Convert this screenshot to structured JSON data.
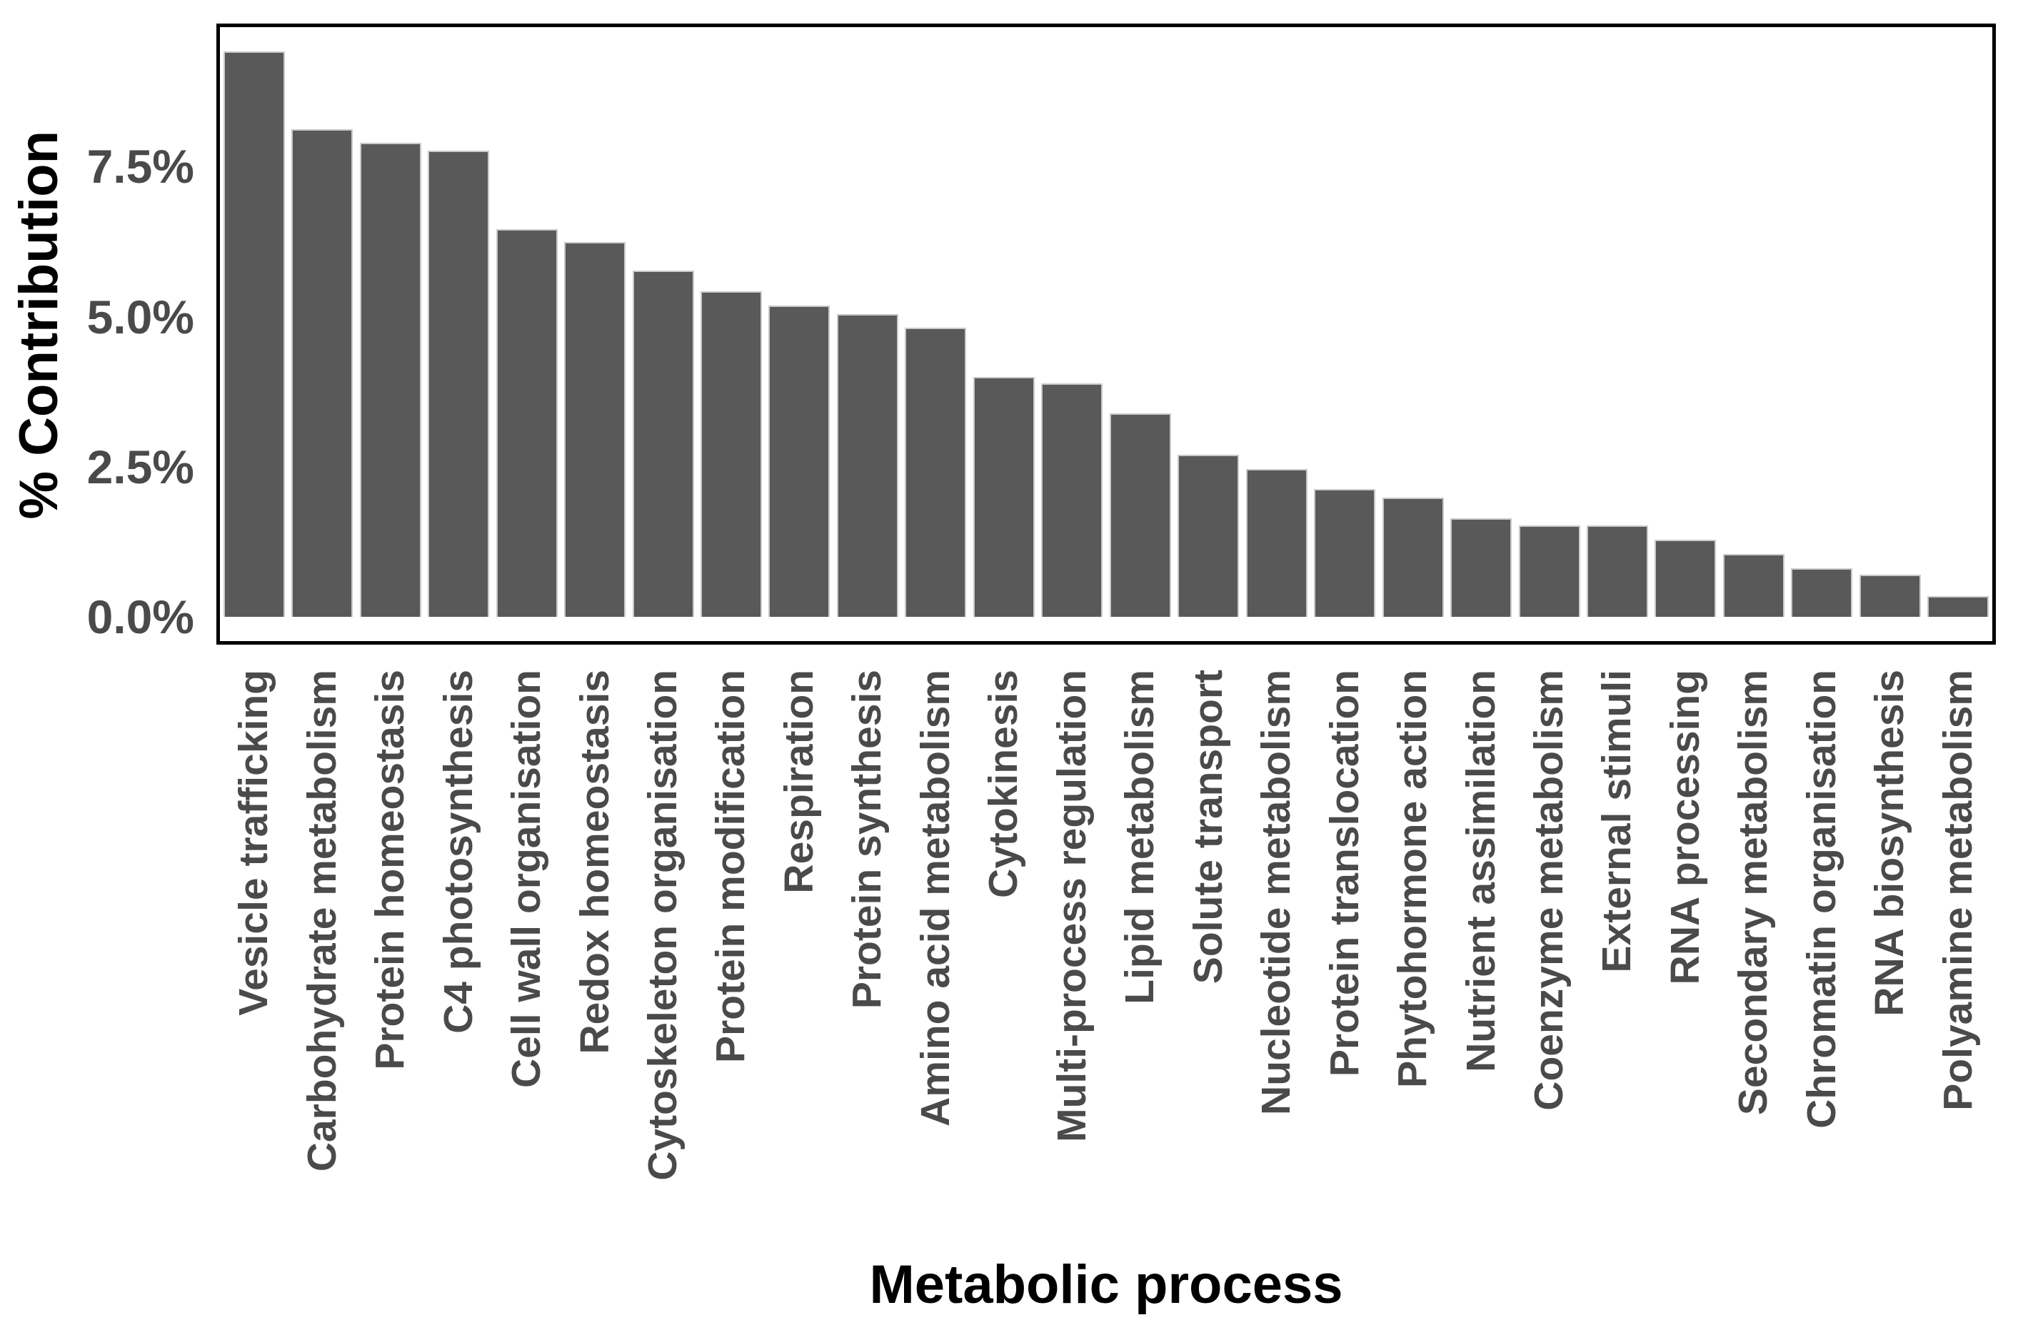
{
  "chart_data": {
    "type": "bar",
    "title": "",
    "xlabel": "Metabolic process",
    "ylabel": "% Contribution",
    "categories": [
      "Vesicle trafficking",
      "Carbohydrate metabolism",
      "Protein homeostasis",
      "C4 photosynthesis",
      "Cell wall organisation",
      "Redox homeostasis",
      "Cytoskeleton organisation",
      "Protein modification",
      "Respiration",
      "Protein synthesis",
      "Amino acid metabolism",
      "Cytokinesis",
      "Multi-process regulation",
      "Lipid metabolism",
      "Solute transport",
      "Nucleotide metabolism",
      "Protein translocation",
      "Phytohormone action",
      "Nutrient assimilation",
      "Coenzyme metabolism",
      "External stimuli",
      "RNA processing",
      "Secondary metabolism",
      "Chromatin organisation",
      "RNA biosynthesis",
      "Polyamine metabolism"
    ],
    "values": [
      9.42,
      8.12,
      7.89,
      7.77,
      6.46,
      6.24,
      5.77,
      5.42,
      5.19,
      5.04,
      4.82,
      4.0,
      3.89,
      3.39,
      2.7,
      2.46,
      2.13,
      1.99,
      1.64,
      1.52,
      1.52,
      1.29,
      1.05,
      0.81,
      0.7,
      0.35
    ],
    "ylim": [
      0,
      9.82
    ],
    "yticks": [
      {
        "value": 0.0,
        "label": "0.0%"
      },
      {
        "value": 2.5,
        "label": "2.5%"
      },
      {
        "value": 5.0,
        "label": "5.0%"
      },
      {
        "value": 7.5,
        "label": "7.5%"
      }
    ],
    "grid": false,
    "legend_position": "none",
    "x_label_rotation_degrees": 90,
    "bar_color": "#595959",
    "bar_border_color": "#c9c9c9",
    "axis_text_color": "#4a4a4a",
    "axis_title_color": "#000000",
    "panel_border_color": "#000000",
    "background_color": "#ffffff"
  }
}
